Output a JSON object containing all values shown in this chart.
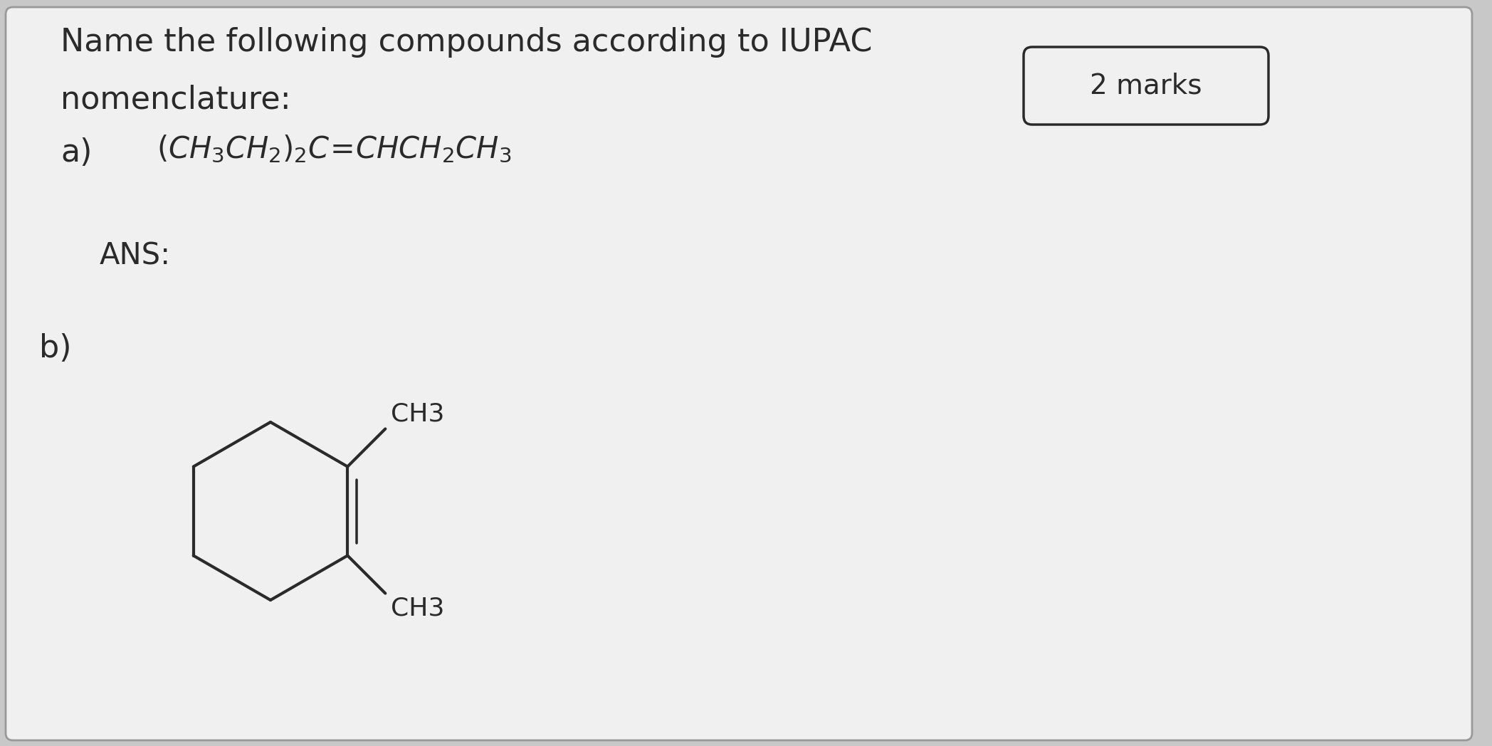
{
  "bg_color": "#c8c8c8",
  "card_color": "#f0f0f0",
  "text_color": "#2a2a2a",
  "title_line1": "Name the following compounds according to IUPAC",
  "title_line2": "nomenclature:",
  "marks_text": "2 marks",
  "part_a_label": "a)",
  "ans_label": "ANS:",
  "part_b_label": "b)",
  "ch3_label": "CH3",
  "font_size_title": 32,
  "font_size_formula": 30,
  "font_size_label": 32,
  "font_size_marks": 28,
  "font_size_ch3": 26,
  "font_size_ans": 30
}
